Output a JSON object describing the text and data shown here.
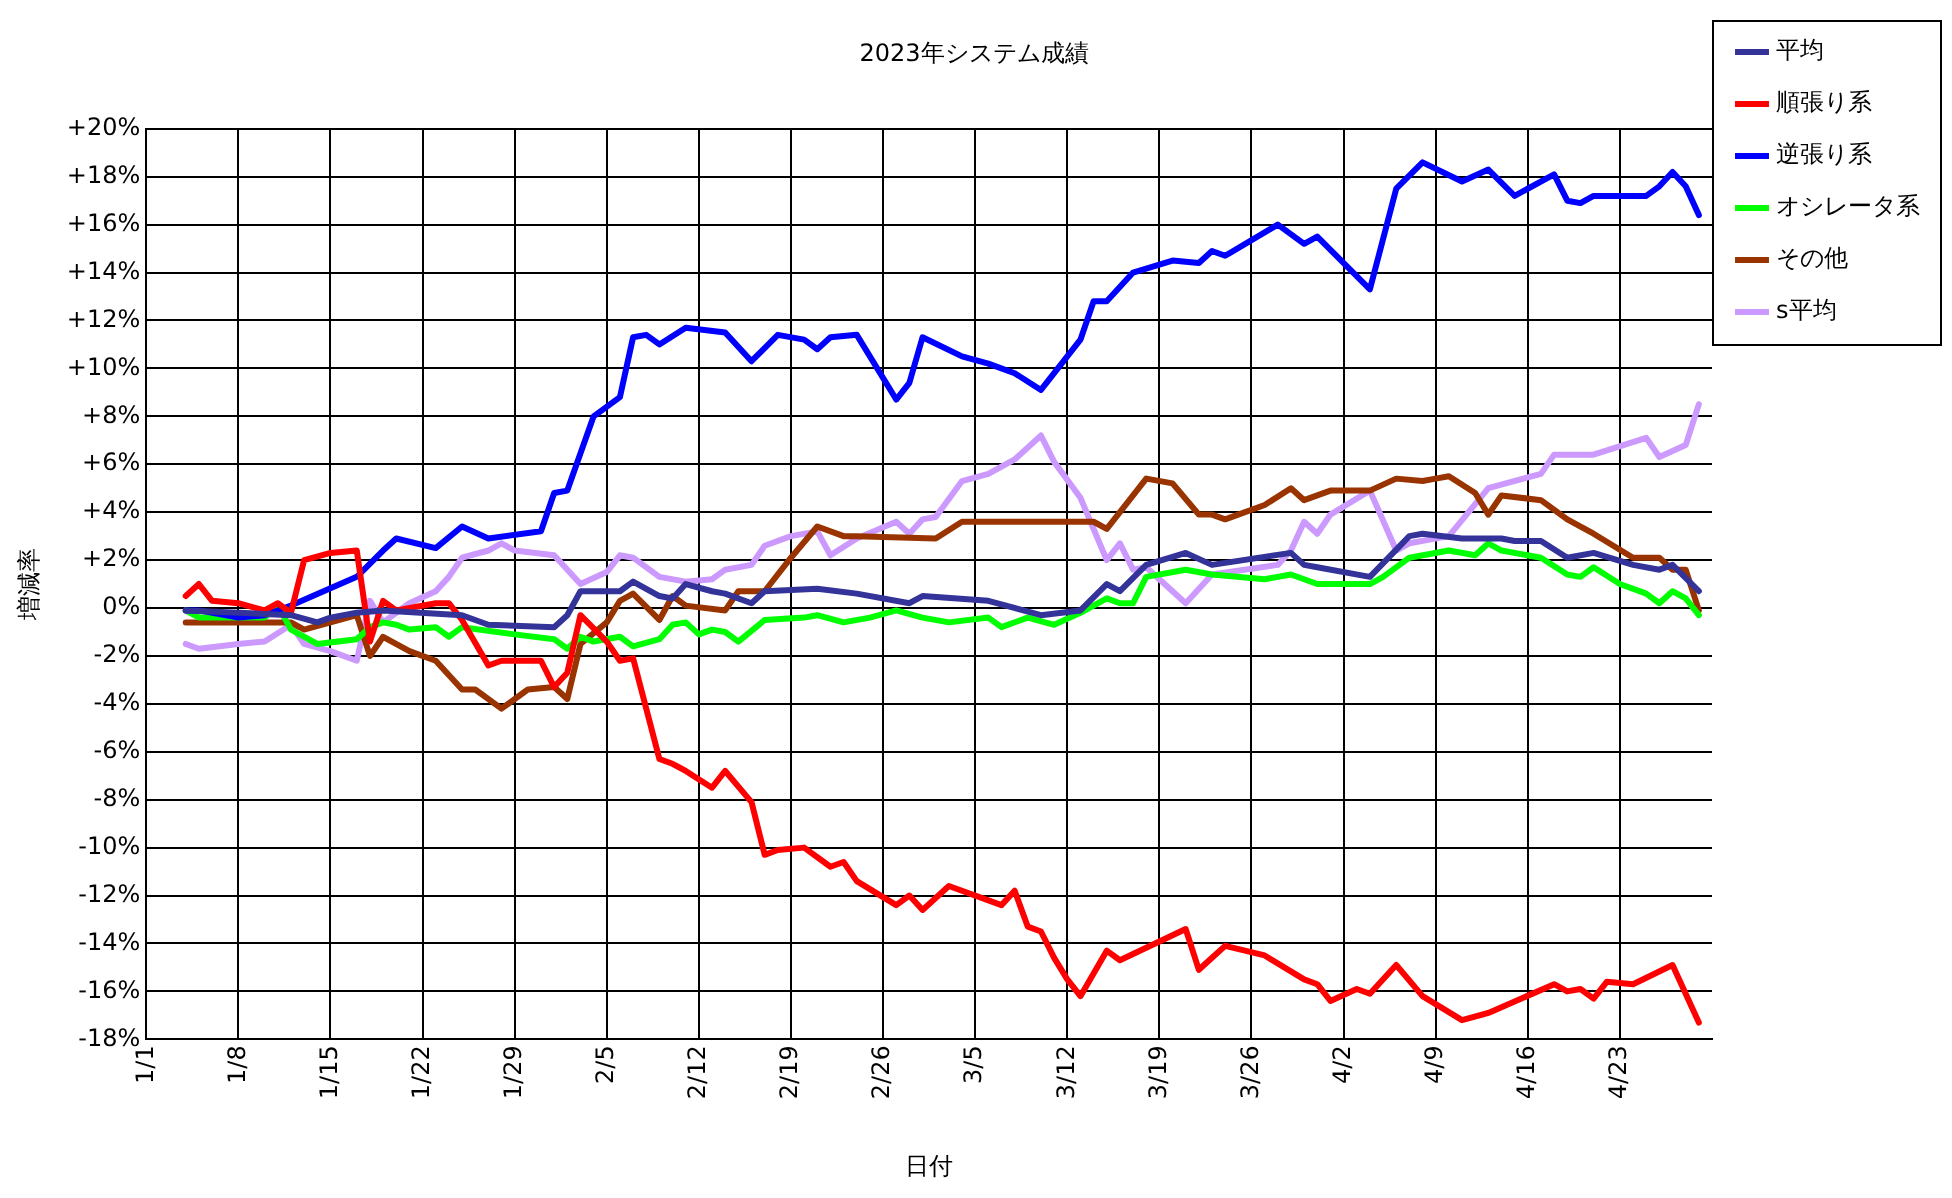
{
  "chart_data": {
    "type": "line",
    "title": "2023年システム成績",
    "xlabel": "日付",
    "ylabel": "増減率",
    "xlim": [
      "2023-01-01",
      "2023-04-30"
    ],
    "xticks": [
      {
        "value": "2023-01-01",
        "label": "1/1"
      },
      {
        "value": "2023-01-08",
        "label": "1/8"
      },
      {
        "value": "2023-01-15",
        "label": "1/15"
      },
      {
        "value": "2023-01-22",
        "label": "1/22"
      },
      {
        "value": "2023-01-29",
        "label": "1/29"
      },
      {
        "value": "2023-02-05",
        "label": "2/5"
      },
      {
        "value": "2023-02-12",
        "label": "2/12"
      },
      {
        "value": "2023-02-19",
        "label": "2/19"
      },
      {
        "value": "2023-02-26",
        "label": "2/26"
      },
      {
        "value": "2023-03-05",
        "label": "3/5"
      },
      {
        "value": "2023-03-12",
        "label": "3/12"
      },
      {
        "value": "2023-03-19",
        "label": "3/19"
      },
      {
        "value": "2023-03-26",
        "label": "3/26"
      },
      {
        "value": "2023-04-02",
        "label": "4/2"
      },
      {
        "value": "2023-04-09",
        "label": "4/9"
      },
      {
        "value": "2023-04-16",
        "label": "4/16"
      },
      {
        "value": "2023-04-23",
        "label": "4/23"
      }
    ],
    "ylim": [
      -18,
      20
    ],
    "yticks": [
      {
        "value": -18,
        "label": "-18%"
      },
      {
        "value": -16,
        "label": "-16%"
      },
      {
        "value": -14,
        "label": "-14%"
      },
      {
        "value": -12,
        "label": "-12%"
      },
      {
        "value": -10,
        "label": "-10%"
      },
      {
        "value": -8,
        "label": "-8%"
      },
      {
        "value": -6,
        "label": "-6%"
      },
      {
        "value": -4,
        "label": "-4%"
      },
      {
        "value": -2,
        "label": "-2%"
      },
      {
        "value": 0,
        "label": "0%"
      },
      {
        "value": 2,
        "label": "+2%"
      },
      {
        "value": 4,
        "label": "+4%"
      },
      {
        "value": 6,
        "label": "+6%"
      },
      {
        "value": 8,
        "label": "+8%"
      },
      {
        "value": 10,
        "label": "+10%"
      },
      {
        "value": 12,
        "label": "+12%"
      },
      {
        "value": 14,
        "label": "+14%"
      },
      {
        "value": 16,
        "label": "+16%"
      },
      {
        "value": 18,
        "label": "+18%"
      },
      {
        "value": 20,
        "label": "+20%"
      }
    ],
    "grid": true,
    "legend": "top right",
    "marker": "none",
    "line_style": "solid",
    "series": [
      {
        "name": "平均",
        "color": "#333399",
        "x": [
          "2023-01-04",
          "2023-01-12",
          "2023-01-14",
          "2023-01-15",
          "2023-01-17",
          "2023-01-19",
          "2023-01-25",
          "2023-01-27",
          "2023-02-01",
          "2023-02-02",
          "2023-02-03",
          "2023-02-06",
          "2023-02-07",
          "2023-02-09",
          "2023-02-10",
          "2023-02-11",
          "2023-02-13",
          "2023-02-14",
          "2023-02-16",
          "2023-02-17",
          "2023-02-21",
          "2023-02-24",
          "2023-02-28",
          "2023-03-01",
          "2023-03-06",
          "2023-03-10",
          "2023-03-13",
          "2023-03-15",
          "2023-03-16",
          "2023-03-18",
          "2023-03-21",
          "2023-03-23",
          "2023-03-29",
          "2023-03-30",
          "2023-03-31",
          "2023-04-04",
          "2023-04-07",
          "2023-04-08",
          "2023-04-11",
          "2023-04-14",
          "2023-04-15",
          "2023-04-17",
          "2023-04-19",
          "2023-04-21",
          "2023-04-24",
          "2023-04-26",
          "2023-04-27",
          "2023-04-29"
        ],
        "values": [
          -0.1,
          -0.3,
          -0.6,
          -0.4,
          -0.2,
          -0.1,
          -0.3,
          -0.7,
          -0.8,
          -0.3,
          0.7,
          0.7,
          1.1,
          0.5,
          0.4,
          1.0,
          0.7,
          0.6,
          0.2,
          0.7,
          0.8,
          0.6,
          0.2,
          0.5,
          0.3,
          -0.3,
          -0.1,
          1.0,
          0.7,
          1.8,
          2.3,
          1.8,
          2.3,
          1.8,
          1.7,
          1.3,
          3.0,
          3.1,
          2.9,
          2.9,
          2.8,
          2.8,
          2.1,
          2.3,
          1.8,
          1.6,
          1.8,
          0.7
        ]
      },
      {
        "name": "順張り系",
        "color": "#ff0000",
        "x": [
          "2023-01-04",
          "2023-01-05",
          "2023-01-06",
          "2023-01-08",
          "2023-01-10",
          "2023-01-11",
          "2023-01-12",
          "2023-01-13",
          "2023-01-15",
          "2023-01-17",
          "2023-01-18",
          "2023-01-19",
          "2023-01-20",
          "2023-01-23",
          "2023-01-24",
          "2023-01-25",
          "2023-01-27",
          "2023-01-28",
          "2023-01-31",
          "2023-02-01",
          "2023-02-02",
          "2023-02-03",
          "2023-02-05",
          "2023-02-06",
          "2023-02-07",
          "2023-02-09",
          "2023-02-10",
          "2023-02-11",
          "2023-02-13",
          "2023-02-14",
          "2023-02-16",
          "2023-02-17",
          "2023-02-18",
          "2023-02-20",
          "2023-02-22",
          "2023-02-23",
          "2023-02-24",
          "2023-02-27",
          "2023-02-28",
          "2023-03-01",
          "2023-03-03",
          "2023-03-07",
          "2023-03-08",
          "2023-03-09",
          "2023-03-10",
          "2023-03-11",
          "2023-03-12",
          "2023-03-13",
          "2023-03-15",
          "2023-03-16",
          "2023-03-21",
          "2023-03-22",
          "2023-03-23",
          "2023-03-24",
          "2023-03-27",
          "2023-03-30",
          "2023-03-31",
          "2023-04-01",
          "2023-04-03",
          "2023-04-04",
          "2023-04-06",
          "2023-04-08",
          "2023-04-11",
          "2023-04-13",
          "2023-04-18",
          "2023-04-19",
          "2023-04-20",
          "2023-04-21",
          "2023-04-22",
          "2023-04-24",
          "2023-04-27",
          "2023-04-28",
          "2023-04-29"
        ],
        "values": [
          0.5,
          1.0,
          0.3,
          0.2,
          -0.1,
          0.2,
          -0.2,
          2.0,
          2.3,
          2.4,
          -1.4,
          0.3,
          -0.1,
          0.2,
          0.2,
          -0.5,
          -2.4,
          -2.2,
          -2.2,
          -3.3,
          -2.7,
          -0.3,
          -1.4,
          -2.2,
          -2.1,
          -6.3,
          -6.5,
          -6.8,
          -7.5,
          -6.8,
          -8.1,
          -10.3,
          -10.1,
          -10.0,
          -10.8,
          -10.6,
          -11.4,
          -12.4,
          -12.0,
          -12.6,
          -11.6,
          -12.4,
          -11.8,
          -13.3,
          -13.5,
          -14.6,
          -15.5,
          -16.2,
          -14.3,
          -14.7,
          -13.4,
          -15.1,
          -14.6,
          -14.1,
          -14.5,
          -15.5,
          -15.7,
          -16.4,
          -15.9,
          -16.1,
          -14.9,
          -16.2,
          -17.2,
          -16.9,
          -15.7,
          -16.0,
          -15.9,
          -16.3,
          -15.6,
          -15.7,
          -14.9,
          -16.1,
          -17.3
        ]
      },
      {
        "name": "逆張り系",
        "color": "#0000ff",
        "x": [
          "2023-01-04",
          "2023-01-05",
          "2023-01-08",
          "2023-01-10",
          "2023-01-12",
          "2023-01-17",
          "2023-01-19",
          "2023-01-20",
          "2023-01-23",
          "2023-01-25",
          "2023-01-27",
          "2023-01-31",
          "2023-02-01",
          "2023-02-02",
          "2023-02-04",
          "2023-02-06",
          "2023-02-07",
          "2023-02-08",
          "2023-02-09",
          "2023-02-11",
          "2023-02-14",
          "2023-02-16",
          "2023-02-18",
          "2023-02-20",
          "2023-02-21",
          "2023-02-22",
          "2023-02-24",
          "2023-02-27",
          "2023-02-28",
          "2023-03-01",
          "2023-03-04",
          "2023-03-06",
          "2023-03-08",
          "2023-03-10",
          "2023-03-11",
          "2023-03-13",
          "2023-03-14",
          "2023-03-15",
          "2023-03-17",
          "2023-03-20",
          "2023-03-22",
          "2023-03-23",
          "2023-03-24",
          "2023-03-28",
          "2023-03-30",
          "2023-03-31",
          "2023-04-04",
          "2023-04-06",
          "2023-04-08",
          "2023-04-11",
          "2023-04-13",
          "2023-04-15",
          "2023-04-18",
          "2023-04-19",
          "2023-04-20",
          "2023-04-21",
          "2023-04-25",
          "2023-04-26",
          "2023-04-27",
          "2023-04-28",
          "2023-04-29"
        ],
        "values": [
          -0.1,
          -0.1,
          -0.4,
          -0.3,
          0.1,
          1.3,
          2.4,
          2.9,
          2.5,
          3.4,
          2.9,
          3.2,
          4.8,
          4.9,
          8.0,
          8.8,
          11.3,
          11.4,
          11.0,
          11.7,
          11.5,
          10.3,
          11.4,
          11.2,
          10.8,
          11.3,
          11.4,
          8.7,
          9.4,
          11.3,
          10.5,
          10.2,
          9.8,
          9.1,
          9.8,
          11.2,
          12.8,
          12.8,
          14.0,
          14.5,
          14.4,
          14.9,
          14.7,
          16.0,
          15.2,
          15.5,
          13.3,
          17.5,
          18.6,
          17.8,
          18.3,
          17.2,
          18.1,
          17.0,
          16.9,
          17.2,
          17.2,
          17.6,
          18.2,
          17.6,
          16.4
        ]
      },
      {
        "name": "オシレータ系",
        "color": "#00ff00",
        "x": [
          "2023-01-04",
          "2023-01-05",
          "2023-01-10",
          "2023-01-11",
          "2023-01-12",
          "2023-01-14",
          "2023-01-17",
          "2023-01-18",
          "2023-01-19",
          "2023-01-20",
          "2023-01-21",
          "2023-01-23",
          "2023-01-24",
          "2023-01-25",
          "2023-01-29",
          "2023-02-01",
          "2023-02-02",
          "2023-02-03",
          "2023-02-04",
          "2023-02-06",
          "2023-02-07",
          "2023-02-09",
          "2023-02-10",
          "2023-02-11",
          "2023-02-12",
          "2023-02-13",
          "2023-02-14",
          "2023-02-15",
          "2023-02-17",
          "2023-02-20",
          "2023-02-21",
          "2023-02-23",
          "2023-02-25",
          "2023-02-27",
          "2023-03-01",
          "2023-03-03",
          "2023-03-06",
          "2023-03-07",
          "2023-03-09",
          "2023-03-11",
          "2023-03-13",
          "2023-03-15",
          "2023-03-16",
          "2023-03-17",
          "2023-03-18",
          "2023-03-21",
          "2023-03-23",
          "2023-03-27",
          "2023-03-29",
          "2023-03-31",
          "2023-04-04",
          "2023-04-05",
          "2023-04-07",
          "2023-04-10",
          "2023-04-12",
          "2023-04-13",
          "2023-04-14",
          "2023-04-17",
          "2023-04-19",
          "2023-04-20",
          "2023-04-21",
          "2023-04-23",
          "2023-04-25",
          "2023-04-26",
          "2023-04-27",
          "2023-04-28",
          "2023-04-29"
        ],
        "values": [
          -0.1,
          -0.4,
          -0.4,
          0.1,
          -0.9,
          -1.5,
          -1.3,
          -0.8,
          -0.6,
          -0.7,
          -0.9,
          -0.8,
          -1.2,
          -0.8,
          -1.1,
          -1.3,
          -1.7,
          -1.2,
          -1.4,
          -1.2,
          -1.6,
          -1.3,
          -0.7,
          -0.6,
          -1.1,
          -0.9,
          -1.0,
          -1.4,
          -0.5,
          -0.4,
          -0.3,
          -0.6,
          -0.4,
          -0.1,
          -0.4,
          -0.6,
          -0.4,
          -0.8,
          -0.4,
          -0.7,
          -0.2,
          0.4,
          0.2,
          0.2,
          1.3,
          1.6,
          1.4,
          1.2,
          1.4,
          1.0,
          1.0,
          1.3,
          2.1,
          2.4,
          2.2,
          2.7,
          2.4,
          2.1,
          1.4,
          1.3,
          1.7,
          1.0,
          0.6,
          0.2,
          0.7,
          0.4,
          -0.3
        ]
      },
      {
        "name": "その他",
        "color": "#993300",
        "x": [
          "2023-01-04",
          "2023-01-12",
          "2023-01-13",
          "2023-01-17",
          "2023-01-18",
          "2023-01-19",
          "2023-01-21",
          "2023-01-23",
          "2023-01-25",
          "2023-01-26",
          "2023-01-28",
          "2023-01-30",
          "2023-02-01",
          "2023-02-02",
          "2023-02-03",
          "2023-02-05",
          "2023-02-06",
          "2023-02-07",
          "2023-02-09",
          "2023-02-10",
          "2023-02-11",
          "2023-02-14",
          "2023-02-15",
          "2023-02-17",
          "2023-02-19",
          "2023-02-21",
          "2023-02-23",
          "2023-02-24",
          "2023-03-02",
          "2023-03-04",
          "2023-03-12",
          "2023-03-14",
          "2023-03-15",
          "2023-03-18",
          "2023-03-20",
          "2023-03-22",
          "2023-03-23",
          "2023-03-24",
          "2023-03-27",
          "2023-03-29",
          "2023-03-30",
          "2023-04-01",
          "2023-04-04",
          "2023-04-06",
          "2023-04-08",
          "2023-04-09",
          "2023-04-10",
          "2023-04-12",
          "2023-04-13",
          "2023-04-14",
          "2023-04-17",
          "2023-04-19",
          "2023-04-21",
          "2023-04-24",
          "2023-04-26",
          "2023-04-27",
          "2023-04-28",
          "2023-04-29"
        ],
        "values": [
          -0.6,
          -0.6,
          -0.9,
          -0.3,
          -2.0,
          -1.2,
          -1.8,
          -2.2,
          -3.4,
          -3.4,
          -4.2,
          -3.4,
          -3.3,
          -3.8,
          -1.5,
          -0.6,
          0.3,
          0.6,
          -0.5,
          0.5,
          0.1,
          -0.1,
          0.7,
          0.7,
          2.1,
          3.4,
          3.0,
          3.0,
          2.9,
          3.6,
          3.6,
          3.6,
          3.3,
          5.4,
          5.2,
          3.9,
          3.9,
          3.7,
          4.3,
          5.0,
          4.5,
          4.9,
          4.9,
          5.4,
          5.3,
          5.4,
          5.5,
          4.8,
          3.9,
          4.7,
          4.5,
          3.7,
          3.1,
          2.1,
          2.1,
          1.6,
          1.6,
          -0.1
        ]
      },
      {
        "name": "s平均",
        "color": "#cc99ff",
        "x": [
          "2023-01-04",
          "2023-01-05",
          "2023-01-08",
          "2023-01-10",
          "2023-01-12",
          "2023-01-13",
          "2023-01-15",
          "2023-01-17",
          "2023-01-18",
          "2023-01-19",
          "2023-01-21",
          "2023-01-23",
          "2023-01-24",
          "2023-01-25",
          "2023-01-27",
          "2023-01-28",
          "2023-01-29",
          "2023-02-01",
          "2023-02-03",
          "2023-02-05",
          "2023-02-06",
          "2023-02-07",
          "2023-02-09",
          "2023-02-11",
          "2023-02-13",
          "2023-02-14",
          "2023-02-16",
          "2023-02-17",
          "2023-02-19",
          "2023-02-21",
          "2023-02-22",
          "2023-02-24",
          "2023-02-27",
          "2023-02-28",
          "2023-03-01",
          "2023-03-02",
          "2023-03-04",
          "2023-03-06",
          "2023-03-08",
          "2023-03-10",
          "2023-03-11",
          "2023-03-13",
          "2023-03-15",
          "2023-03-16",
          "2023-03-17",
          "2023-03-18",
          "2023-03-21",
          "2023-03-23",
          "2023-03-28",
          "2023-03-29",
          "2023-03-30",
          "2023-03-31",
          "2023-04-01",
          "2023-04-04",
          "2023-04-06",
          "2023-04-07",
          "2023-04-10",
          "2023-04-13",
          "2023-04-17",
          "2023-04-18",
          "2023-04-19",
          "2023-04-21",
          "2023-04-25",
          "2023-04-26",
          "2023-04-28",
          "2023-04-29"
        ],
        "values": [
          -1.5,
          -1.7,
          -1.5,
          -1.4,
          -0.7,
          -1.5,
          -1.8,
          -2.2,
          0.3,
          -0.6,
          0.2,
          0.7,
          1.3,
          2.1,
          2.4,
          2.7,
          2.4,
          2.2,
          1.0,
          1.5,
          2.2,
          2.1,
          1.3,
          1.1,
          1.2,
          1.6,
          1.8,
          2.6,
          3.0,
          3.2,
          2.2,
          2.9,
          3.6,
          3.1,
          3.7,
          3.8,
          5.3,
          5.6,
          6.2,
          7.2,
          6.1,
          4.6,
          2.0,
          2.7,
          1.6,
          1.7,
          0.2,
          1.4,
          1.8,
          2.4,
          3.6,
          3.1,
          3.9,
          4.9,
          2.4,
          2.7,
          3.0,
          5.0,
          5.6,
          6.4,
          6.4,
          6.4,
          7.1,
          6.3,
          6.8,
          8.5
        ]
      }
    ]
  }
}
